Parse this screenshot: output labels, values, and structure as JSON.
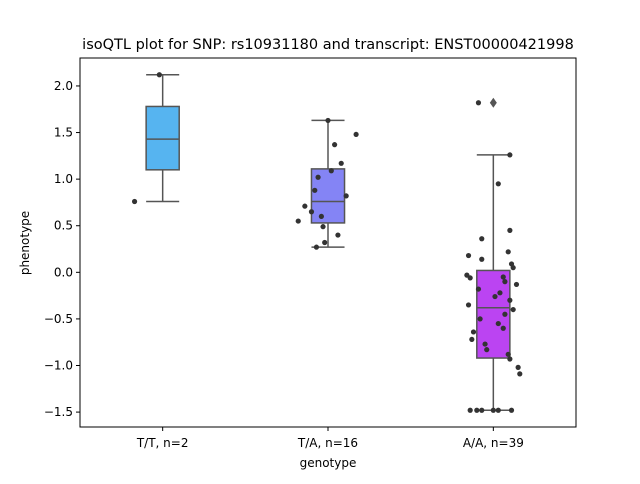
{
  "chart_data": {
    "type": "box",
    "title": "isoQTL plot for SNP: rs10931180 and transcript: ENST00000421998",
    "xlabel": "genotype",
    "ylabel": "phenotype",
    "ylim": [
      -1.66,
      2.3
    ],
    "yticks": [
      {
        "v": -1.5,
        "label": "−1.5"
      },
      {
        "v": -1.0,
        "label": "−1.0"
      },
      {
        "v": -0.5,
        "label": "−0.5"
      },
      {
        "v": 0.0,
        "label": "0.0"
      },
      {
        "v": 0.5,
        "label": "0.5"
      },
      {
        "v": 1.0,
        "label": "1.0"
      },
      {
        "v": 1.5,
        "label": "1.5"
      },
      {
        "v": 2.0,
        "label": "2.0"
      }
    ],
    "grid": false,
    "categories": [
      "T/T, n=2",
      "T/A, n=16",
      "A/A, n=39"
    ],
    "colors": [
      "#56b4f0",
      "#8484f5",
      "#bb44f2"
    ],
    "boxes": [
      {
        "q1": 1.1,
        "median": 1.43,
        "q3": 1.78,
        "whisker_low": 0.76,
        "whisker_high": 2.12,
        "fliers": []
      },
      {
        "q1": 0.53,
        "median": 0.76,
        "q3": 1.11,
        "whisker_low": 0.27,
        "whisker_high": 1.63,
        "fliers": []
      },
      {
        "q1": -0.92,
        "median": -0.38,
        "q3": 0.02,
        "whisker_low": -1.48,
        "whisker_high": 1.26,
        "fliers": [
          1.82
        ]
      }
    ],
    "points": [
      [
        [
          -0.17,
          0.76
        ],
        [
          -0.02,
          2.12
        ]
      ],
      [
        [
          0.0,
          1.63
        ],
        [
          0.04,
          1.37
        ],
        [
          0.17,
          1.48
        ],
        [
          0.08,
          1.17
        ],
        [
          0.02,
          1.09
        ],
        [
          -0.06,
          1.02
        ],
        [
          -0.08,
          0.88
        ],
        [
          0.11,
          0.82
        ],
        [
          -0.18,
          0.55
        ],
        [
          -0.14,
          0.71
        ],
        [
          -0.1,
          0.65
        ],
        [
          -0.04,
          0.6
        ],
        [
          -0.03,
          0.49
        ],
        [
          0.06,
          0.4
        ],
        [
          -0.02,
          0.32
        ],
        [
          -0.07,
          0.27
        ]
      ],
      [
        [
          -0.09,
          1.82
        ],
        [
          0.1,
          1.26
        ],
        [
          0.03,
          0.95
        ],
        [
          0.1,
          0.45
        ],
        [
          -0.07,
          0.36
        ],
        [
          0.09,
          0.22
        ],
        [
          -0.15,
          0.18
        ],
        [
          -0.07,
          0.14
        ],
        [
          0.11,
          0.09
        ],
        [
          0.12,
          0.05
        ],
        [
          -0.16,
          -0.03
        ],
        [
          -0.14,
          -0.06
        ],
        [
          0.06,
          -0.05
        ],
        [
          0.07,
          -0.1
        ],
        [
          0.14,
          -0.13
        ],
        [
          -0.09,
          -0.18
        ],
        [
          0.04,
          -0.22
        ],
        [
          0.01,
          -0.26
        ],
        [
          0.1,
          -0.3
        ],
        [
          -0.15,
          -0.35
        ],
        [
          0.12,
          -0.4
        ],
        [
          0.07,
          -0.45
        ],
        [
          -0.08,
          -0.5
        ],
        [
          0.03,
          -0.55
        ],
        [
          0.06,
          -0.6
        ],
        [
          -0.12,
          -0.64
        ],
        [
          -0.13,
          -0.72
        ],
        [
          -0.05,
          -0.77
        ],
        [
          -0.04,
          -0.83
        ],
        [
          0.09,
          -0.88
        ],
        [
          0.1,
          -0.93
        ],
        [
          0.15,
          -1.02
        ],
        [
          0.16,
          -1.09
        ],
        [
          -0.1,
          -1.48
        ],
        [
          -0.07,
          -1.48
        ],
        [
          0.0,
          -1.48
        ],
        [
          0.03,
          -1.48
        ],
        [
          0.11,
          -1.48
        ],
        [
          -0.14,
          -1.48
        ]
      ]
    ]
  }
}
